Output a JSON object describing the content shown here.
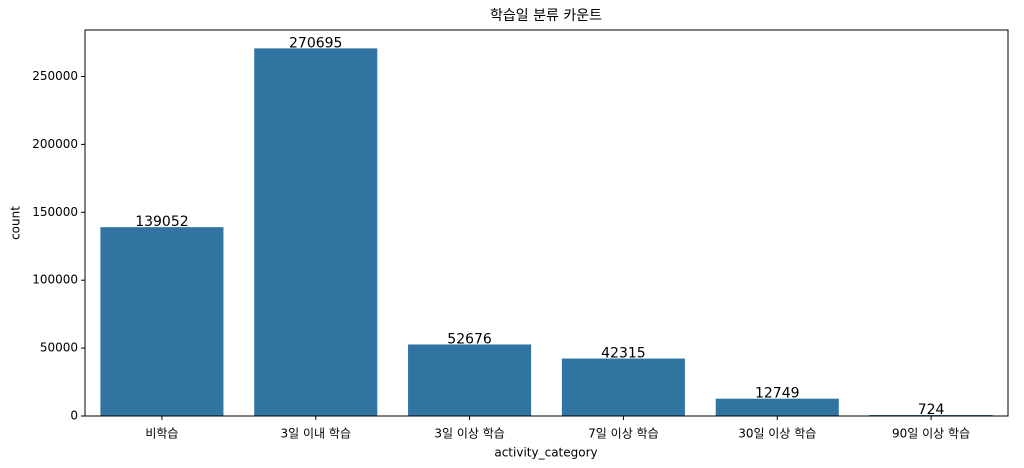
{
  "chart_data": {
    "type": "bar",
    "title": "학습일 분류 카운트",
    "x_label": "activity_category",
    "y_label": "count",
    "categories": [
      "비학습",
      "3일 이내 학습",
      "3일 이상 학습",
      "7일 이상 학습",
      "30일 이상 학습",
      "90일 이상 학습"
    ],
    "values": [
      139052,
      270695,
      52676,
      42315,
      12749,
      724
    ],
    "color": "#3274a1",
    "ylim": [
      0,
      284230
    ],
    "yticks": [
      0,
      50000,
      100000,
      150000,
      200000,
      250000
    ],
    "grid": false
  }
}
